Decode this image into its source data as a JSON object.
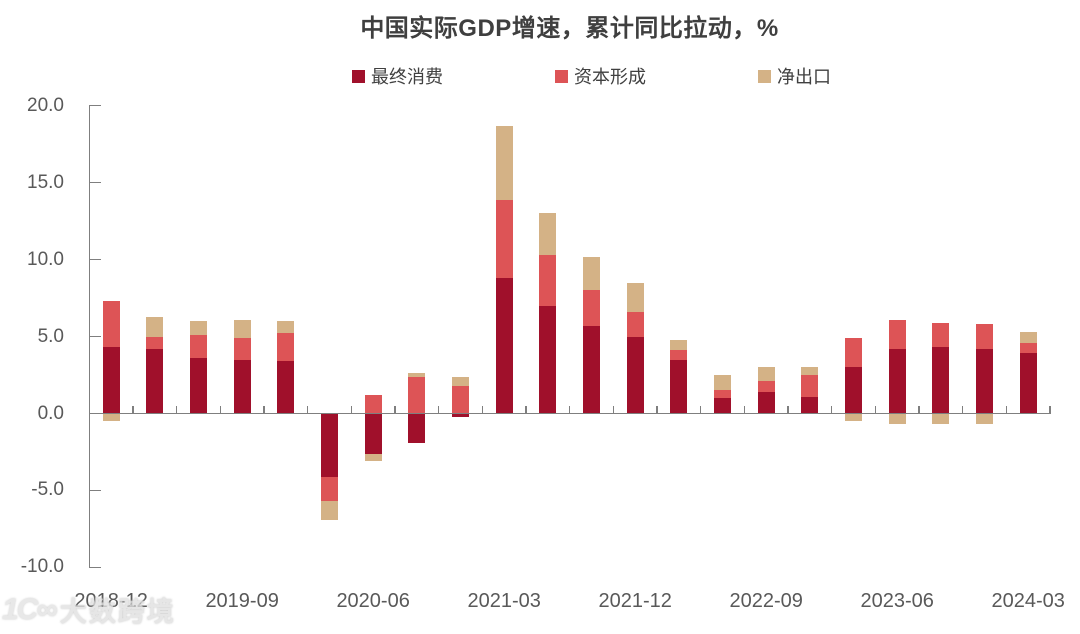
{
  "page": {
    "background": "#FFFFFF"
  },
  "chart_data": {
    "type": "bar",
    "stacked": true,
    "title": "中国实际GDP增速，累计同比拉动，%",
    "unit": "%",
    "categories": [
      "2018-12",
      "2019-03",
      "2019-06",
      "2019-09",
      "2019-12",
      "2020-03",
      "2020-06",
      "2020-09",
      "2020-12",
      "2021-03",
      "2021-06",
      "2021-09",
      "2021-12",
      "2022-03",
      "2022-06",
      "2022-09",
      "2022-12",
      "2023-03",
      "2023-06",
      "2023-09",
      "2023-12",
      "2024-03"
    ],
    "x_axis_labels": [
      "2018-12",
      "2019-09",
      "2020-06",
      "2021-03",
      "2021-12",
      "2022-09",
      "2023-06",
      "2024-03"
    ],
    "x_label_indices": [
      0,
      3,
      6,
      9,
      12,
      15,
      18,
      21
    ],
    "series": [
      {
        "name": "最终消费",
        "color": "#A0102B",
        "values": [
          4.3,
          4.2,
          3.6,
          3.5,
          3.4,
          -4.1,
          -2.6,
          -1.9,
          -0.2,
          8.8,
          7.0,
          5.7,
          5.0,
          3.5,
          1.0,
          1.4,
          1.1,
          3.0,
          4.2,
          4.3,
          4.2,
          3.9
        ]
      },
      {
        "name": "资本形成",
        "color": "#DD5456",
        "values": [
          3.0,
          0.8,
          1.5,
          1.4,
          1.8,
          -1.6,
          1.2,
          2.4,
          1.8,
          5.1,
          3.3,
          2.3,
          1.6,
          0.6,
          0.5,
          0.7,
          1.4,
          1.9,
          1.9,
          1.6,
          1.6,
          0.7
        ]
      },
      {
        "name": "净出口",
        "color": "#D4B286",
        "values": [
          -0.5,
          1.3,
          0.9,
          1.2,
          0.8,
          -1.2,
          -0.5,
          0.2,
          0.6,
          4.8,
          2.7,
          2.2,
          1.9,
          0.7,
          1.0,
          0.9,
          0.5,
          -0.5,
          -0.7,
          -0.7,
          -0.7,
          0.7
        ]
      }
    ],
    "ylim": [
      -10.0,
      20.0
    ],
    "ytick_step": 5.0,
    "yticks": [
      20.0,
      15.0,
      10.0,
      5.0,
      0.0,
      -5.0,
      -10.0
    ],
    "grid": false,
    "legend_position": "top",
    "axis_color": "#7F7F7F",
    "label_color": "#595959",
    "title_color": "#3F3F3F"
  },
  "watermark": {
    "logo_text": "1C∞",
    "text": "大数跨境"
  }
}
